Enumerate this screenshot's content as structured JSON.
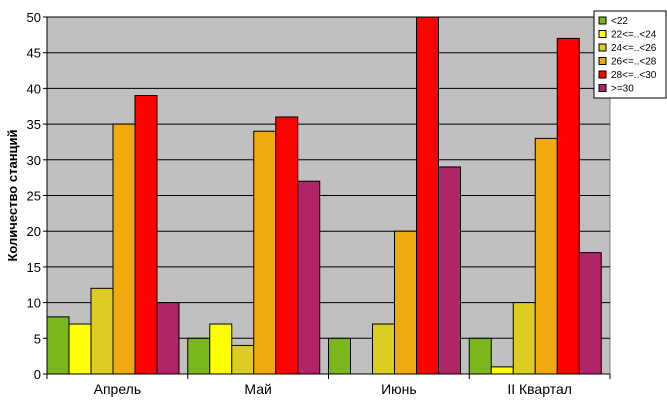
{
  "chart_data": {
    "type": "bar",
    "title": "",
    "xlabel": "",
    "ylabel": "Количество станций",
    "ylim": [
      0,
      50
    ],
    "yticks": [
      0,
      5,
      10,
      15,
      20,
      25,
      30,
      35,
      40,
      45,
      50
    ],
    "grid": true,
    "legend_position": "top-right",
    "categories": [
      "Апрель",
      "Май",
      "Июнь",
      "II Квартал"
    ],
    "plot_background": "#c0c0c0",
    "series": [
      {
        "name": "<22",
        "color": "#7ab61c",
        "values": [
          8,
          5,
          5,
          5
        ]
      },
      {
        "name": "22<=..<24",
        "color": "#ffff00",
        "values": [
          7,
          7,
          0,
          1
        ]
      },
      {
        "name": "24<=..<26",
        "color": "#ddcc22",
        "values": [
          12,
          4,
          7,
          10
        ]
      },
      {
        "name": "26<=..<28",
        "color": "#f0aa10",
        "values": [
          35,
          34,
          20,
          33
        ]
      },
      {
        "name": "28<=..<30",
        "color": "#ff0000",
        "values": [
          39,
          36,
          50,
          47
        ]
      },
      {
        "name": ">=30",
        "color": "#b02468",
        "values": [
          10,
          27,
          29,
          17
        ]
      }
    ]
  }
}
